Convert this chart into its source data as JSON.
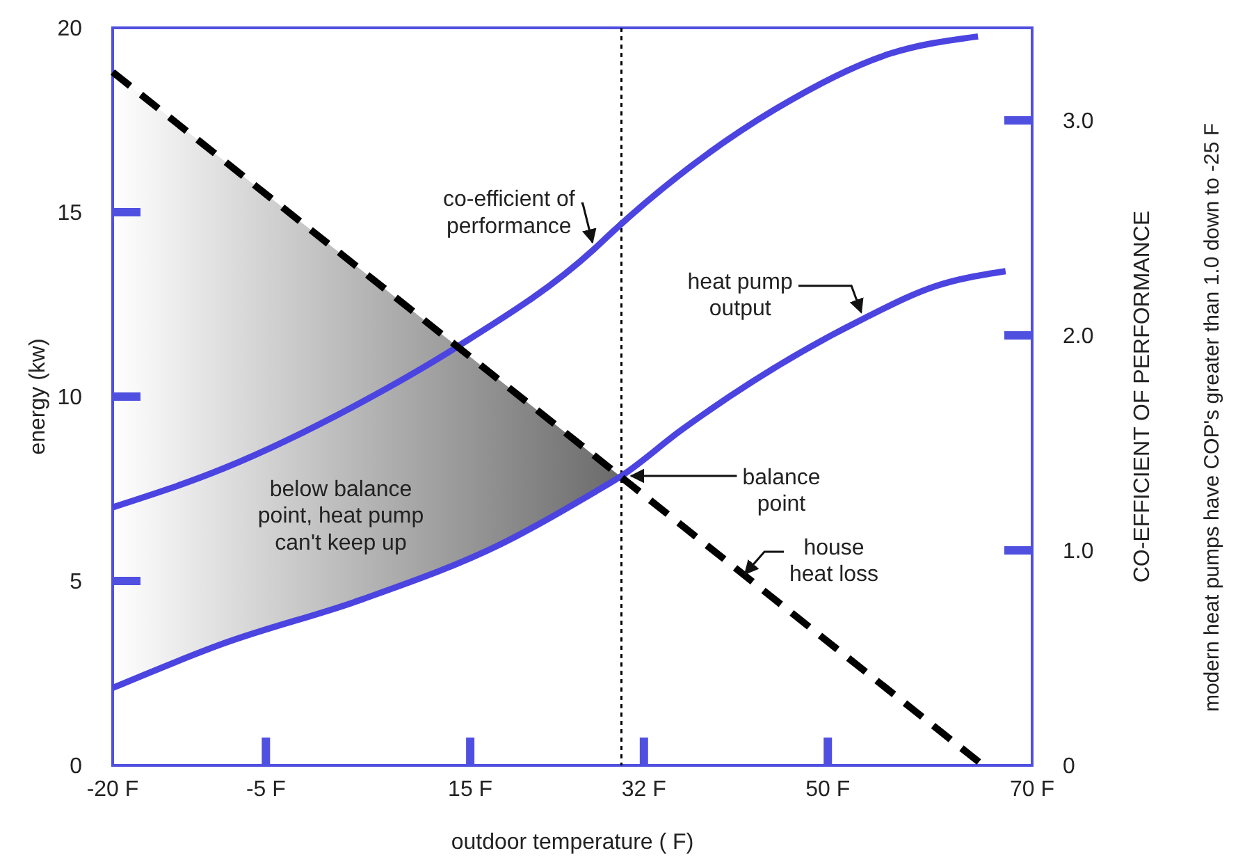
{
  "chart_data": {
    "type": "line",
    "xlabel": "outdoor temperature ( F)",
    "ylabel": "energy (kw)",
    "y2label": "CO-EFFICIENT OF PERFORMANCE",
    "xlim": [
      -20,
      70
    ],
    "xticks": [
      {
        "value": -20,
        "label": "-20 F"
      },
      {
        "value": -5,
        "label": "-5 F"
      },
      {
        "value": 15,
        "label": "15 F"
      },
      {
        "value": 32,
        "label": "32 F"
      },
      {
        "value": 50,
        "label": "50 F"
      },
      {
        "value": 70,
        "label": "70 F"
      }
    ],
    "ylim": [
      0,
      20
    ],
    "yticks": [
      0,
      5,
      10,
      15,
      20
    ],
    "y2lim": [
      0,
      3.43
    ],
    "y2ticks": [
      0,
      {
        "value": 1,
        "label": "1.0"
      },
      {
        "value": 2,
        "label": "2.0"
      },
      {
        "value": 3,
        "label": "3.0"
      }
    ],
    "series": [
      {
        "name": "co-efficient of performance",
        "color": "#4b44e0",
        "axis": "y2",
        "x": [
          -20,
          -9.2,
          4.4,
          13.5,
          27.1,
          28.9,
          44.8,
          56.1,
          64.7
        ],
        "values": [
          1.2,
          1.38,
          1.69,
          1.94,
          2.4,
          2.48,
          3.05,
          3.31,
          3.39
        ]
      },
      {
        "name": "heat pump output",
        "color": "#4b44e0",
        "x": [
          -20,
          -9.2,
          4.4,
          18,
          27.1,
          29.8,
          35.7,
          53.4,
          60.6,
          67.4
        ],
        "values": [
          2.1,
          3.3,
          4.5,
          6,
          7.4,
          7.85,
          9.1,
          12.1,
          13,
          13.4
        ]
      },
      {
        "name": "house heat loss",
        "color": "#000000",
        "line_style": "dashed",
        "x": [
          -20,
          65.2
        ],
        "values": [
          18.8,
          0
        ]
      }
    ],
    "ref_lines": [
      {
        "axis": "x",
        "value": 29.8,
        "color": "#000000",
        "line_style": "dotted"
      }
    ],
    "annotations": [
      {
        "text": "balance point",
        "x": 29.8,
        "y": 7.85
      },
      "below balance point, heat pump can't keep up",
      "modern heat pumps have COP's greater than 1.0 down to -25 F"
    ]
  }
}
